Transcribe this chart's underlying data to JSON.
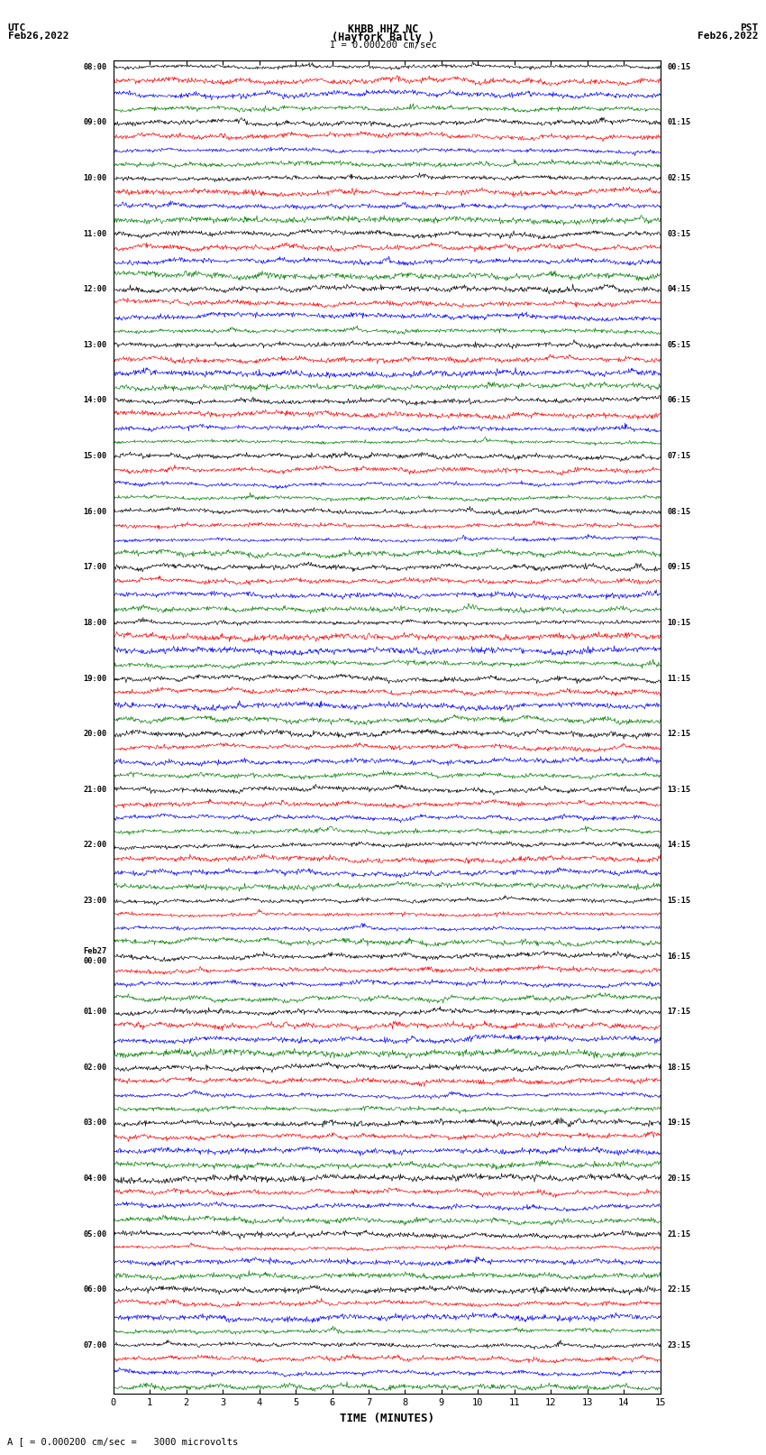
{
  "title_line1": "KHBB HHZ NC",
  "title_line2": "(Hayfork Bally )",
  "scale_text": "I = 0.000200 cm/sec",
  "left_label": "UTC",
  "left_date": "Feb26,2022",
  "right_label": "PST",
  "right_date": "Feb26,2022",
  "xlabel": "TIME (MINUTES)",
  "bottom_note": "A [ = 0.000200 cm/sec =   3000 microvolts",
  "time_minutes": 15,
  "num_hour_groups": 24,
  "traces_per_row": 4,
  "colors": [
    "black",
    "red",
    "blue",
    "green"
  ],
  "left_times_utc": [
    "08:00",
    "09:00",
    "10:00",
    "11:00",
    "12:00",
    "13:00",
    "14:00",
    "15:00",
    "16:00",
    "17:00",
    "18:00",
    "19:00",
    "20:00",
    "21:00",
    "22:00",
    "23:00",
    "Feb27\n00:00",
    "01:00",
    "02:00",
    "03:00",
    "04:00",
    "05:00",
    "06:00",
    "07:00"
  ],
  "right_times_pst": [
    "00:15",
    "01:15",
    "02:15",
    "03:15",
    "04:15",
    "05:15",
    "06:15",
    "07:15",
    "08:15",
    "09:15",
    "10:15",
    "11:15",
    "12:15",
    "13:15",
    "14:15",
    "15:15",
    "16:15",
    "17:15",
    "18:15",
    "19:15",
    "20:15",
    "21:15",
    "22:15",
    "23:15"
  ],
  "bg_color": "white",
  "trace_amplitude": 0.38,
  "noise_seed": 42
}
